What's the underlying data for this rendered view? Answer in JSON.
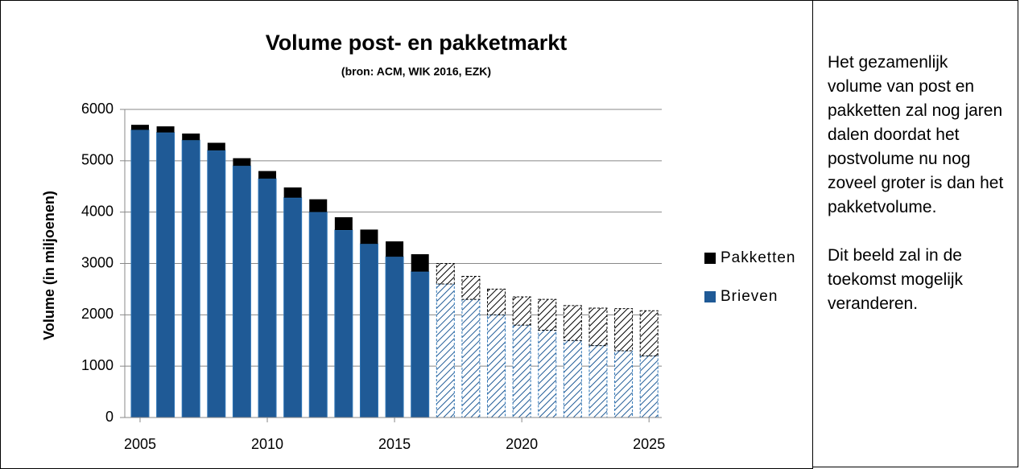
{
  "chart_data": {
    "type": "stacked_bar",
    "title": "Volume post- en pakketmarkt",
    "subtitle": "(bron: ACM, WIK 2016, EZK)",
    "y_label": "Volume (in miljoenen)",
    "x": [
      2005,
      2006,
      2007,
      2008,
      2009,
      2010,
      2011,
      2012,
      2013,
      2014,
      2015,
      2016,
      2017,
      2018,
      2019,
      2020,
      2021,
      2022,
      2023,
      2024,
      2025
    ],
    "series": [
      {
        "name": "Brieven",
        "color": "#1f5a96",
        "values": [
          5600,
          5550,
          5400,
          5200,
          4900,
          4650,
          4280,
          4000,
          3650,
          3380,
          3130,
          2840,
          2600,
          2300,
          2000,
          1800,
          1700,
          1500,
          1400,
          1300,
          1200
        ]
      },
      {
        "name": "Pakketten",
        "color": "#000000",
        "values": [
          100,
          120,
          130,
          150,
          150,
          150,
          200,
          250,
          250,
          280,
          300,
          340,
          400,
          450,
          500,
          550,
          600,
          680,
          730,
          820,
          880
        ]
      }
    ],
    "hatch_from": 2017,
    "xlim": [
      2004.4,
      2025.5
    ],
    "xticks": [
      2005,
      2010,
      2015,
      2020,
      2025
    ],
    "ylim": [
      0,
      6000
    ],
    "yticks": [
      0,
      1000,
      2000,
      3000,
      4000,
      5000,
      6000
    ],
    "grid": true,
    "legend": "right"
  },
  "text_box": {
    "paragraphs": [
      "Het gezamenlijk volume van post en pakketten zal nog jaren dalen doordat het postvolume nu nog zoveel groter is dan het pakketvolume.",
      "Dit beeld zal in de toekomst mogelijk veranderen."
    ]
  }
}
